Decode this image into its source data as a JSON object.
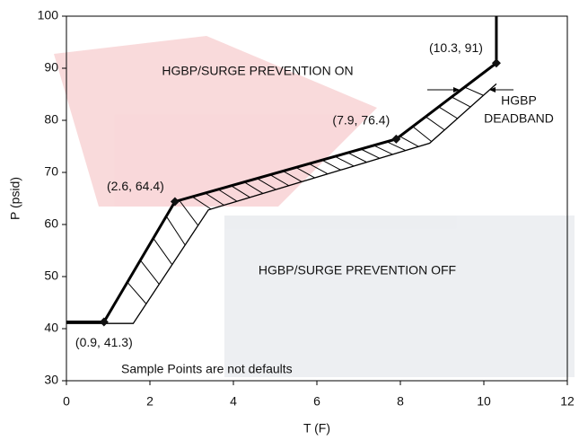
{
  "chart_data": {
    "type": "line",
    "xlabel": "T (F)",
    "ylabel": "P (psid)",
    "xlim": [
      0,
      12
    ],
    "xticks": [
      0,
      2,
      4,
      6,
      8,
      10,
      12
    ],
    "ylim": [
      30,
      100
    ],
    "yticks": [
      30,
      40,
      50,
      60,
      70,
      80,
      90,
      100
    ],
    "grid": false,
    "series": [
      {
        "color": "#000000",
        "x": [
          0,
          0.9,
          2.6,
          7.9,
          10.3,
          10.3
        ],
        "values": [
          41.3,
          41.3,
          64.4,
          76.4,
          91,
          100
        ]
      },
      {
        "color": "#000000",
        "x": [
          0,
          1.6,
          3.4,
          8.7,
          10.3
        ],
        "values": [
          41,
          41,
          62.8,
          75.6,
          87
        ]
      }
    ],
    "points": [
      {
        "x": 0.9,
        "y": 41.3,
        "label": "(0.9, 41.3)"
      },
      {
        "x": 2.6,
        "y": 64.4,
        "label": "(2.6, 64.4)"
      },
      {
        "x": 7.9,
        "y": 76.4,
        "label": "(7.9, 76.4)"
      },
      {
        "x": 10.3,
        "y": 91,
        "label": "(10.3, 91)"
      }
    ],
    "annotations": [
      "HGBP/SURGE PREVENTION ON",
      "HGBP/SURGE PREVENTION OFF",
      "HGBP",
      "DEADBAND",
      "Sample Points are not defaults"
    ]
  }
}
